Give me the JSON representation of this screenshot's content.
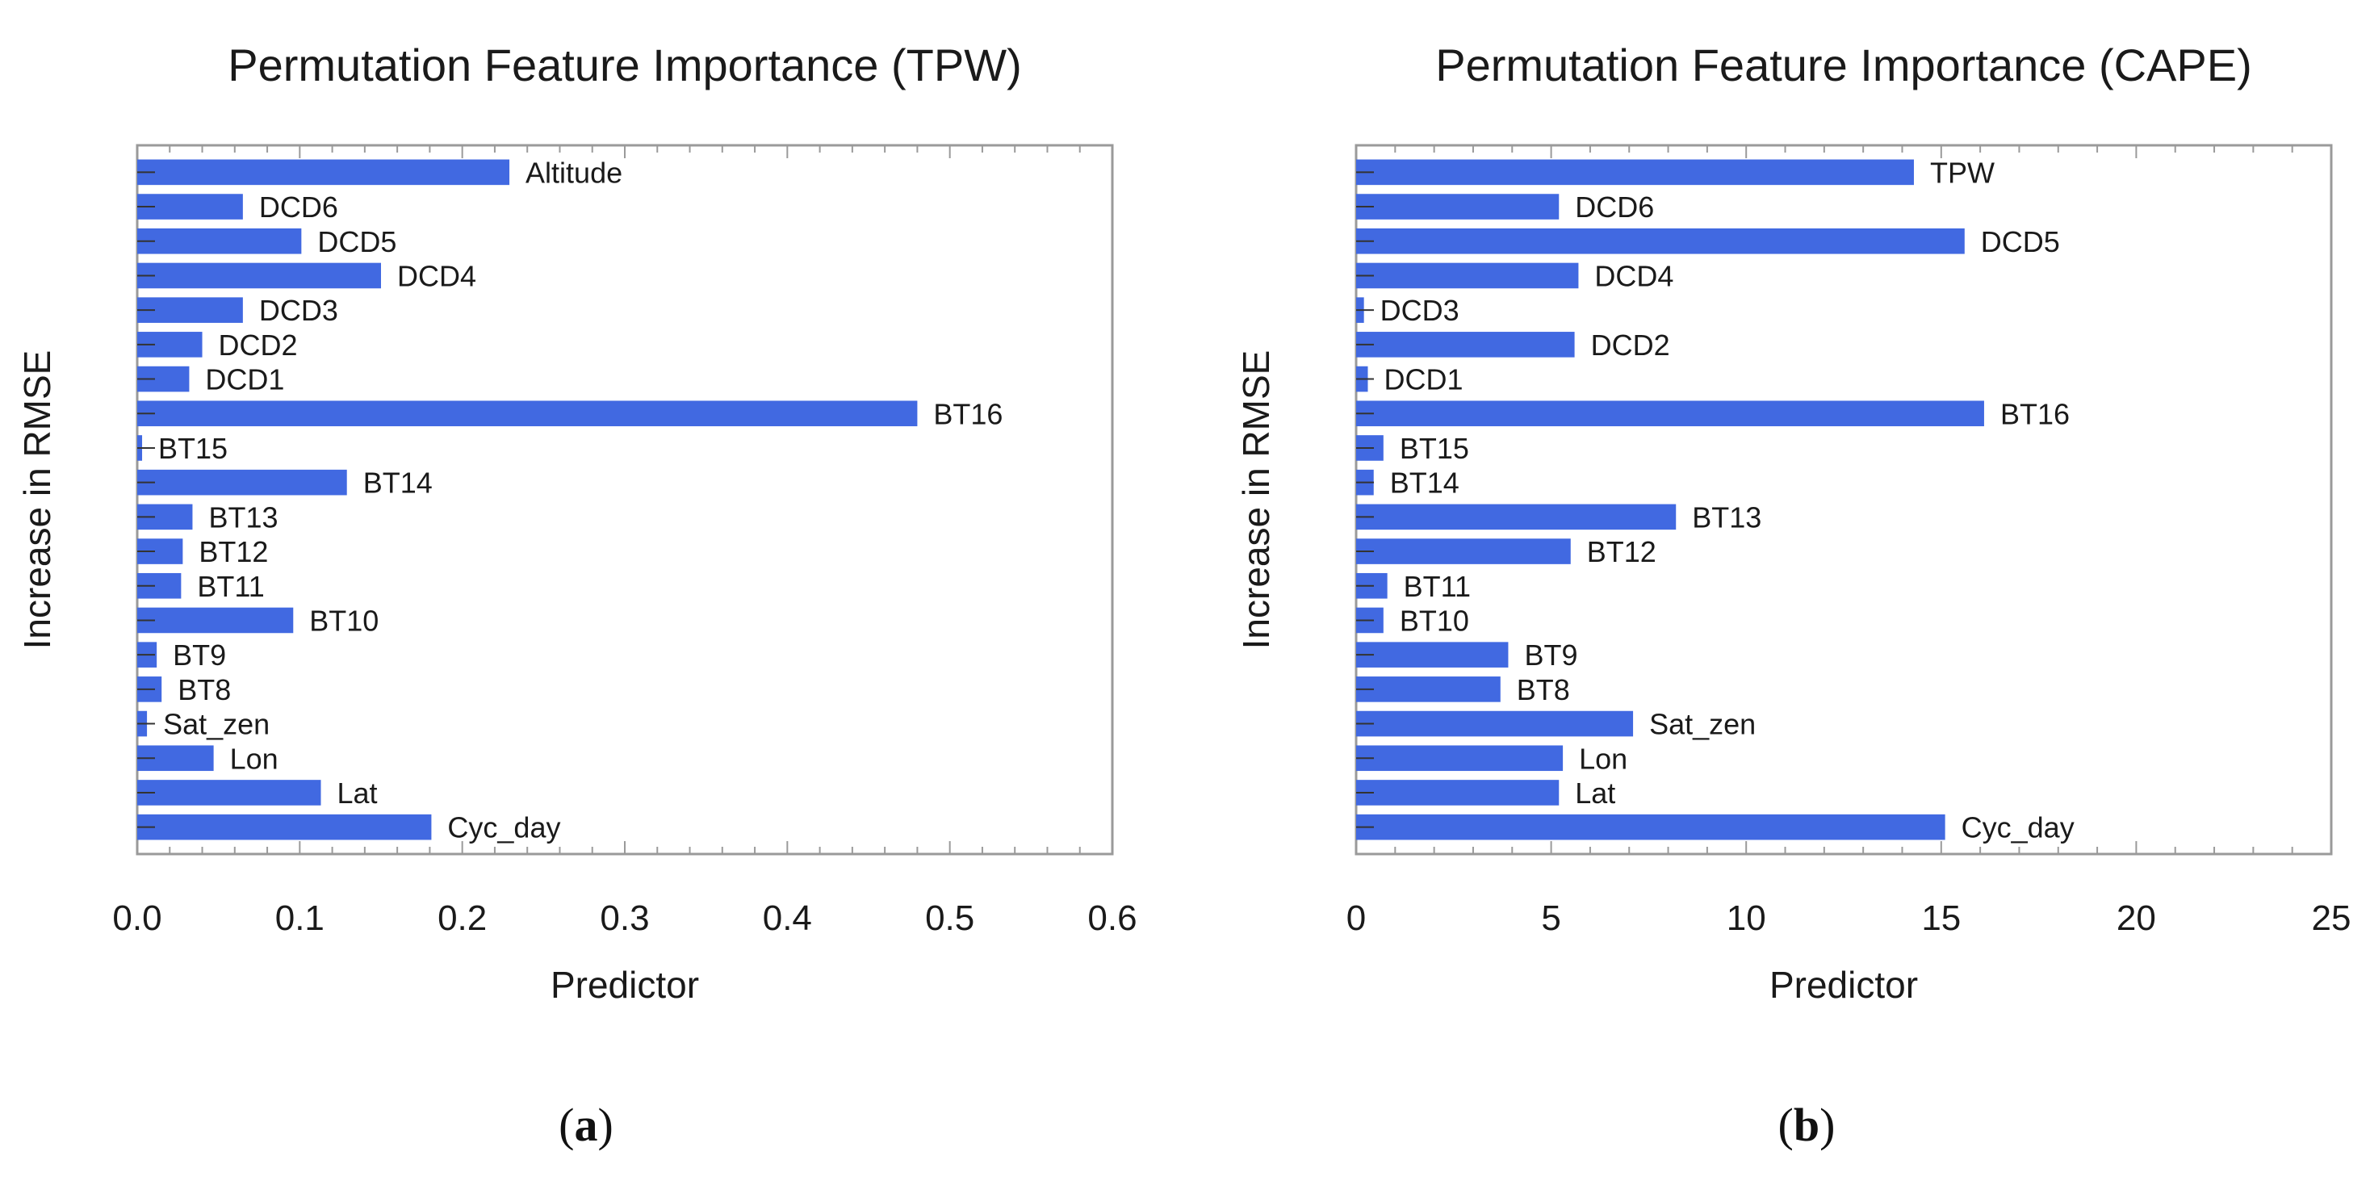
{
  "colors": {
    "bar": "#4169e1",
    "axis": "#9a9a9a",
    "text": "#1a1a1a"
  },
  "captions": {
    "a": "a",
    "b": "b"
  },
  "chart_data": [
    {
      "type": "bar",
      "orientation": "horizontal",
      "title": "Permutation Feature Importance (TPW)",
      "xlabel": "Predictor",
      "ylabel": "Increase in RMSE",
      "xlim": [
        0,
        0.6
      ],
      "xticks": [
        "0.0",
        "0.1",
        "0.2",
        "0.3",
        "0.4",
        "0.5",
        "0.6"
      ],
      "grid": false,
      "categories": [
        "Altitude",
        "DCD6",
        "DCD5",
        "DCD4",
        "DCD3",
        "DCD2",
        "DCD1",
        "BT16",
        "BT15",
        "BT14",
        "BT13",
        "BT12",
        "BT11",
        "BT10",
        "BT9",
        "BT8",
        "Sat_zen",
        "Lon",
        "Lat",
        "Cyc_day"
      ],
      "values": [
        0.229,
        0.065,
        0.101,
        0.15,
        0.065,
        0.04,
        0.032,
        0.48,
        0.003,
        0.129,
        0.034,
        0.028,
        0.027,
        0.096,
        0.012,
        0.015,
        0.006,
        0.047,
        0.113,
        0.181
      ]
    },
    {
      "type": "bar",
      "orientation": "horizontal",
      "title": "Permutation Feature Importance (CAPE)",
      "xlabel": "Predictor",
      "ylabel": "Increase in RMSE",
      "xlim": [
        0,
        25
      ],
      "xticks": [
        "0",
        "5",
        "10",
        "15",
        "20",
        "25"
      ],
      "grid": false,
      "categories": [
        "TPW",
        "DCD6",
        "DCD5",
        "DCD4",
        "DCD3",
        "DCD2",
        "DCD1",
        "BT16",
        "BT15",
        "BT14",
        "BT13",
        "BT12",
        "BT11",
        "BT10",
        "BT9",
        "BT8",
        "Sat_zen",
        "Lon",
        "Lat",
        "Cyc_day"
      ],
      "values": [
        14.3,
        5.2,
        15.6,
        5.7,
        0.2,
        5.6,
        0.3,
        16.1,
        0.7,
        0.45,
        8.2,
        5.5,
        0.8,
        0.7,
        3.9,
        3.7,
        7.1,
        5.3,
        5.2,
        15.1
      ]
    }
  ]
}
